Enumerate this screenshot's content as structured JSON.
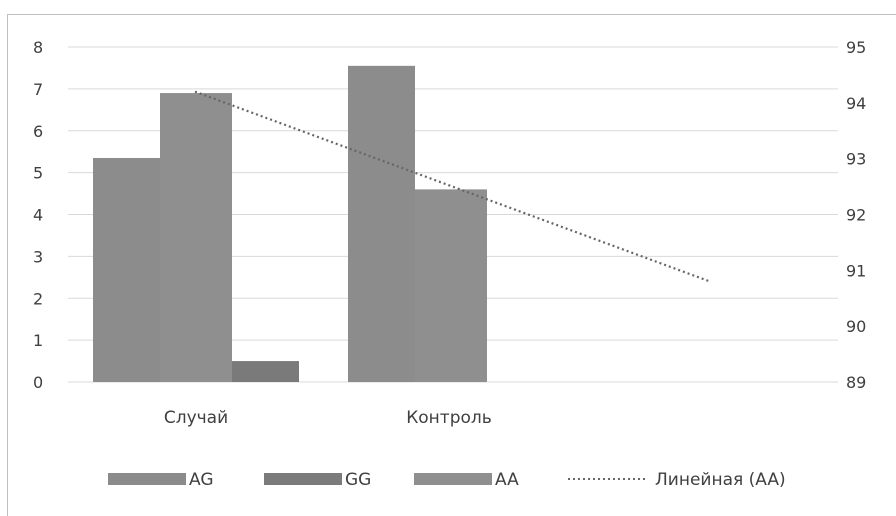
{
  "chart_data": {
    "type": "bar",
    "categories": [
      "Случай",
      "Контроль"
    ],
    "series": [
      {
        "name": "AG",
        "values": [
          5.35,
          7.55
        ],
        "color": "#8c8c8c"
      },
      {
        "name": "AA",
        "values": [
          6.9,
          4.6
        ],
        "color": "#8f8f8f"
      },
      {
        "name": "GG",
        "values": [
          0.5,
          null
        ],
        "color": "#7a7a7a"
      }
    ],
    "legend": [
      "AG",
      "GG",
      "AA",
      "Линейная (AA)"
    ],
    "trendline": {
      "name": "Линейная (AA)",
      "axis": "right",
      "start": 94.2,
      "end": 90.8,
      "style": "dotted",
      "color": "#666666"
    },
    "y_left": {
      "ylim": [
        0,
        8
      ],
      "ticks": [
        0,
        1,
        2,
        3,
        4,
        5,
        6,
        7,
        8
      ]
    },
    "y_right": {
      "ylim": [
        89,
        95
      ],
      "ticks": [
        89,
        90,
        91,
        92,
        93,
        94,
        95
      ]
    },
    "title": "",
    "xlabel": "",
    "ylabel": "",
    "grid": true,
    "legend_position": "bottom"
  }
}
